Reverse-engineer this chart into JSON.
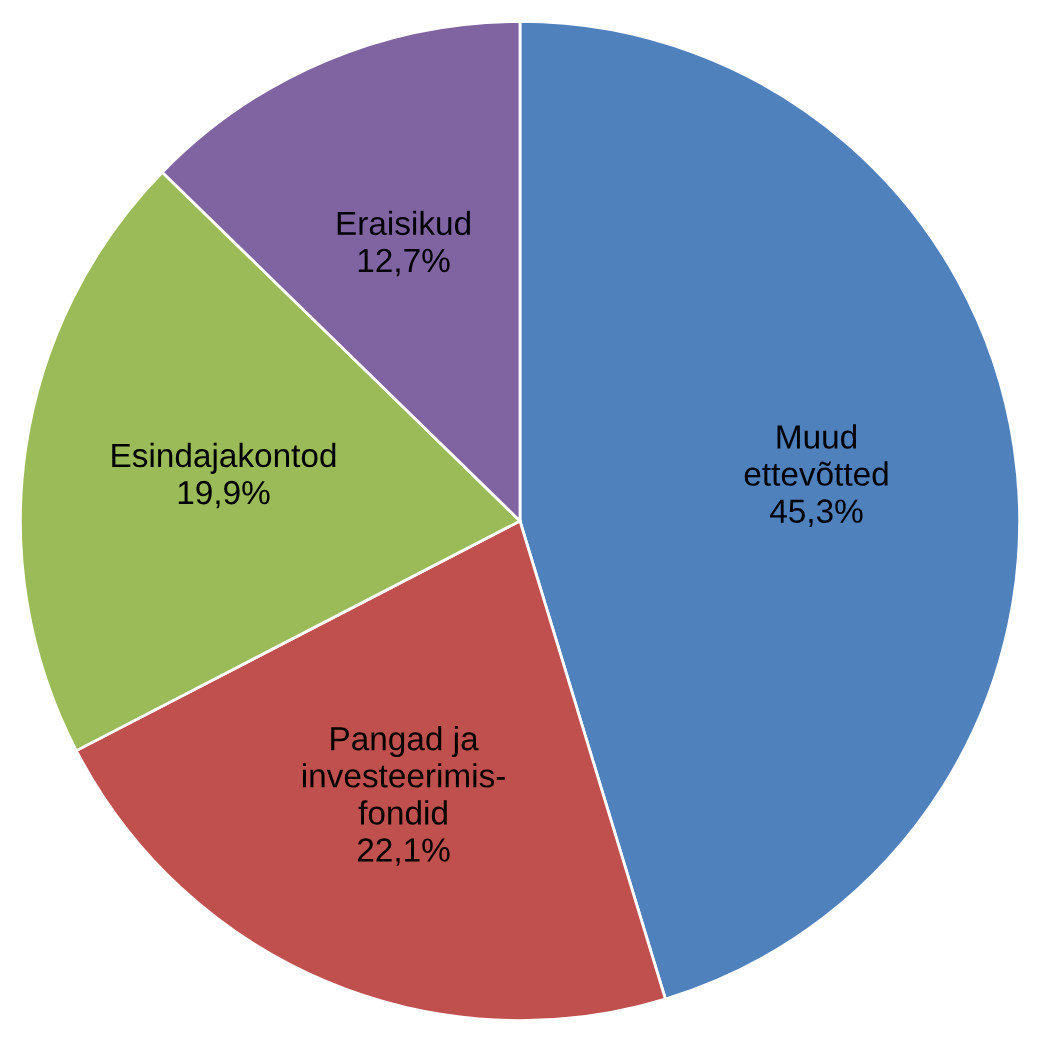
{
  "chart_data": {
    "type": "pie",
    "categories": [
      "Muud\nettevõtted",
      "Pangad ja\ninvesteerimis-\nfondid",
      "Esindajakontod",
      "Eraisikud"
    ],
    "values": [
      45.3,
      22.1,
      19.9,
      12.7
    ],
    "value_labels": [
      "45,3%",
      "22,1%",
      "19,9%",
      "12,7%"
    ],
    "colors": [
      "#4f81bd",
      "#c0504d",
      "#9bbb59",
      "#8064a2"
    ],
    "legend": false
  }
}
